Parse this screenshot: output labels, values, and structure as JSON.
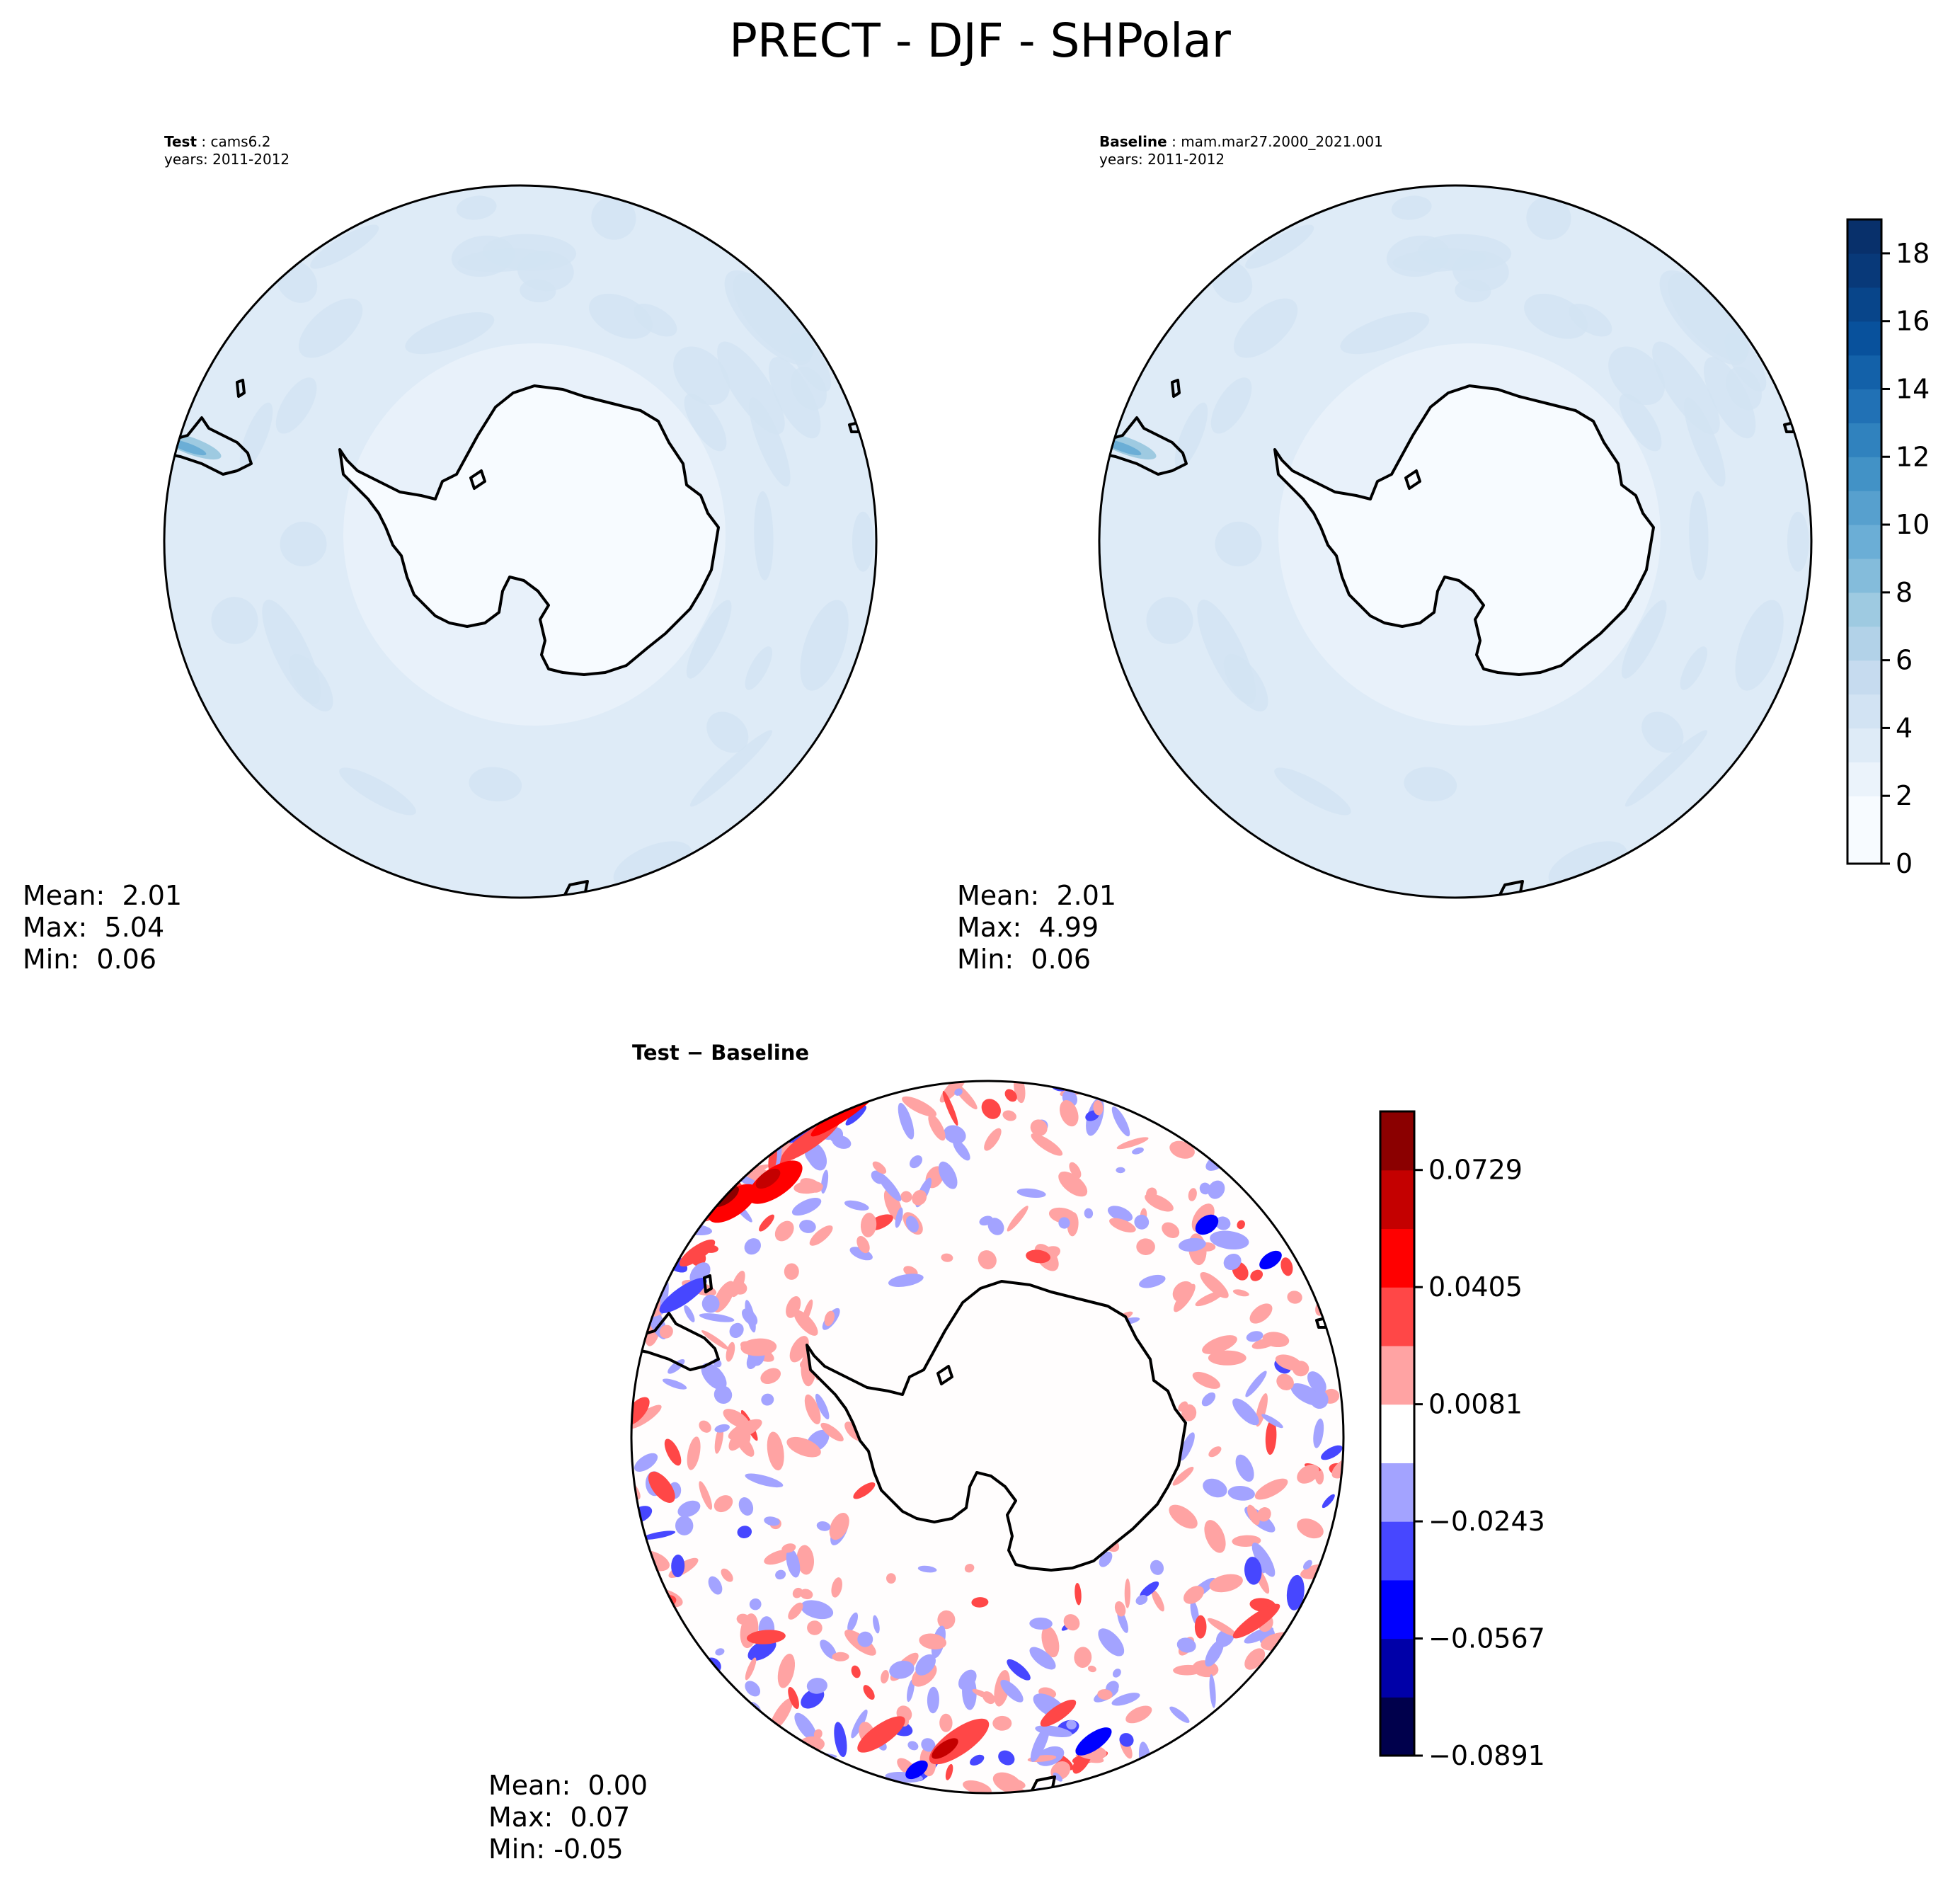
{
  "suptitle": "PRECT - DJF - SHPolar",
  "colors": {
    "blues": [
      "#f7fbff",
      "#ebf3fb",
      "#deebf7",
      "#d2e3f3",
      "#c6dbef",
      "#b2d2e8",
      "#9ecae1",
      "#84bcdb",
      "#6baed6",
      "#57a0ce",
      "#4292c6",
      "#3082be",
      "#2171b5",
      "#1361a9",
      "#08519c",
      "#08458a",
      "#083979",
      "#08306b"
    ],
    "bwr": [
      "#00004c",
      "#0000a8",
      "#0000ff",
      "#4747ff",
      "#a3a3ff",
      "#ffffff",
      "#ffa3a3",
      "#ff4747",
      "#ff0000",
      "#c40000",
      "#8b0000"
    ]
  },
  "panels": {
    "test": {
      "label_bold": "Test",
      "label_rest": " : cams6.2",
      "years": "years: 2011-2012",
      "mean": "Mean:  2.01",
      "max": "Max:  5.04",
      "min": "Min:  0.06"
    },
    "baseline": {
      "label_bold": "Baseline",
      "label_rest": " : mam.mar27.2000_2021.001",
      "years": "years: 2011-2012",
      "mean": "Mean:  2.01",
      "max": "Max:  4.99",
      "min": "Min:  0.06"
    },
    "diff": {
      "label": "Test − Baseline",
      "mean": "Mean:  0.00",
      "max": "Max:  0.07",
      "min": "Min: -0.05"
    }
  },
  "chart_data": [
    {
      "type": "heatmap",
      "panel": "Test",
      "levels": [
        0,
        1,
        2,
        3,
        4,
        5,
        6,
        7,
        8,
        9,
        10,
        11,
        12,
        13,
        14,
        15,
        16,
        17,
        18,
        19
      ],
      "colorbar_ticks": [
        0,
        2,
        4,
        6,
        8,
        10,
        12,
        14,
        16,
        18
      ],
      "colorbar_tick_labels": [
        "0",
        "2",
        "4",
        "6",
        "8",
        "10",
        "12",
        "14",
        "16",
        "18"
      ],
      "mean": 2.01,
      "max": 5.04,
      "min": 0.06
    },
    {
      "type": "heatmap",
      "panel": "Baseline",
      "levels": [
        0,
        1,
        2,
        3,
        4,
        5,
        6,
        7,
        8,
        9,
        10,
        11,
        12,
        13,
        14,
        15,
        16,
        17,
        18,
        19
      ],
      "colorbar_ticks": [
        0,
        2,
        4,
        6,
        8,
        10,
        12,
        14,
        16,
        18
      ],
      "mean": 2.01,
      "max": 4.99,
      "min": 0.06
    },
    {
      "type": "heatmap",
      "panel": "Test − Baseline",
      "levels": [
        -0.0891,
        -0.0729,
        -0.0567,
        -0.0405,
        -0.0243,
        -0.0081,
        0.0081,
        0.0243,
        0.0405,
        0.0567,
        0.0729,
        0.0891
      ],
      "colorbar_ticks": [
        -0.0891,
        -0.0567,
        -0.0243,
        0.0081,
        0.0405,
        0.0729
      ],
      "colorbar_tick_labels": [
        "−0.0891",
        "−0.0567",
        "−0.0243",
        "0.0081",
        "0.0405",
        "0.0729"
      ],
      "mean": 0.0,
      "max": 0.07,
      "min": -0.05
    }
  ]
}
